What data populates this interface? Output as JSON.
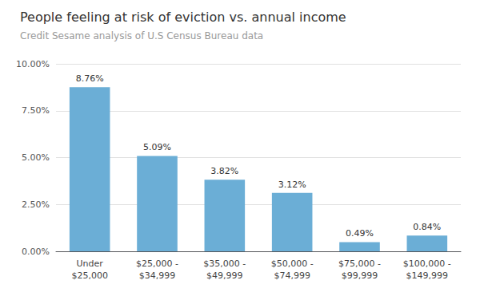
{
  "chart_data": {
    "type": "bar",
    "title": "People feeling at risk of eviction vs. annual income",
    "subtitle": "Credit Sesame analysis of U.S Census Bureau data",
    "categories": [
      "Under\n$25,000",
      "$25,000 -\n$34,999",
      "$35,000 -\n$49,999",
      "$50,000 -\n$74,999",
      "$75,000 -\n$99,999",
      "$100,000 -\n$149,999"
    ],
    "values": [
      8.76,
      5.09,
      3.82,
      3.12,
      0.49,
      0.84
    ],
    "value_labels": [
      "8.76%",
      "5.09%",
      "3.82%",
      "3.12%",
      "0.49%",
      "0.84%"
    ],
    "color": "#6baed6",
    "ylim": [
      0,
      10.0
    ],
    "yticks": [
      {
        "value": 0.0,
        "label": "0.00%"
      },
      {
        "value": 2.5,
        "label": "2.50%"
      },
      {
        "value": 5.0,
        "label": "5.00%"
      },
      {
        "value": 7.5,
        "label": "7.50%"
      },
      {
        "value": 10.0,
        "label": "10.00%"
      }
    ],
    "grid": true,
    "data_labels": true
  }
}
